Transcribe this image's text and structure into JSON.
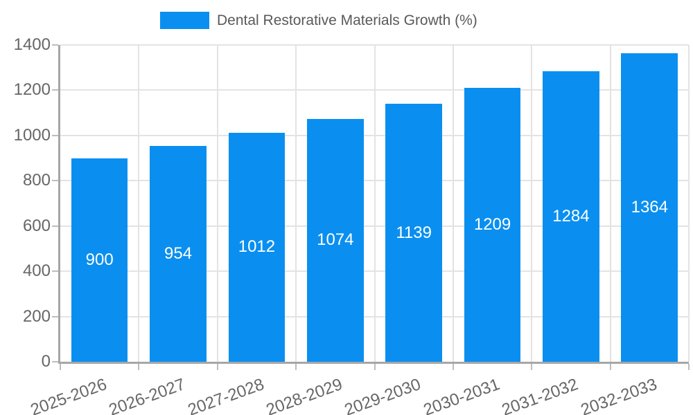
{
  "chart_data": {
    "type": "bar",
    "title": "Dental Restorative Materials Growth (%)",
    "series_name": "Dental Restorative Materials Growth (%)",
    "categories": [
      "2025-2026",
      "2026-2027",
      "2027-2028",
      "2028-2029",
      "2029-2030",
      "2030-2031",
      "2031-2032",
      "2032-2033"
    ],
    "values": [
      900,
      954,
      1012,
      1074,
      1139,
      1209,
      1284,
      1364
    ],
    "bar_value_labels": [
      "900",
      "954",
      "1012",
      "1074",
      "1139",
      "1209",
      "1284",
      "1364"
    ],
    "xlabel": "",
    "ylabel": "",
    "ylim": [
      0,
      1400
    ],
    "ytick_step": 200,
    "ytick_labels": [
      "0",
      "200",
      "400",
      "600",
      "800",
      "1000",
      "1200",
      "1400"
    ],
    "grid": true,
    "legend_position": "top-center",
    "x_tick_rotation_deg": -20,
    "colors": {
      "bar": "#0a8ff0",
      "bar_label": "#ffffff",
      "tick_label": "#666666",
      "legend_text": "#595959",
      "gridline": "#e3e3e3",
      "tick_mark": "#bdbdbd",
      "axis_line": "#a6a6a6",
      "background": "#ffffff"
    }
  }
}
